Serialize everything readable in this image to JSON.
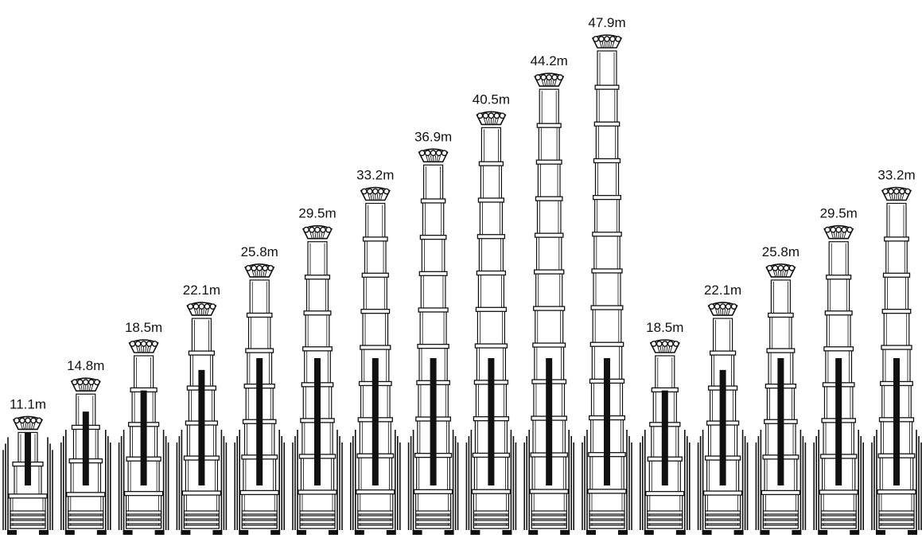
{
  "masts": [
    {
      "height_label": "11.1m",
      "sections": 3
    },
    {
      "height_label": "14.8m",
      "sections": 4
    },
    {
      "height_label": "18.5m",
      "sections": 5
    },
    {
      "height_label": "22.1m",
      "sections": 6
    },
    {
      "height_label": "25.8m",
      "sections": 7
    },
    {
      "height_label": "29.5m",
      "sections": 8
    },
    {
      "height_label": "33.2m",
      "sections": 9
    },
    {
      "height_label": "36.9m",
      "sections": 10
    },
    {
      "height_label": "40.5m",
      "sections": 11
    },
    {
      "height_label": "44.2m",
      "sections": 12
    },
    {
      "height_label": "47.9m",
      "sections": 13
    },
    {
      "height_label": "18.5m",
      "sections": 5
    },
    {
      "height_label": "22.1m",
      "sections": 6
    },
    {
      "height_label": "25.8m",
      "sections": 7
    },
    {
      "height_label": "29.5m",
      "sections": 8
    },
    {
      "height_label": "33.2m",
      "sections": 9
    }
  ],
  "colors": {
    "line": "#111111",
    "background": "#ffffff"
  }
}
